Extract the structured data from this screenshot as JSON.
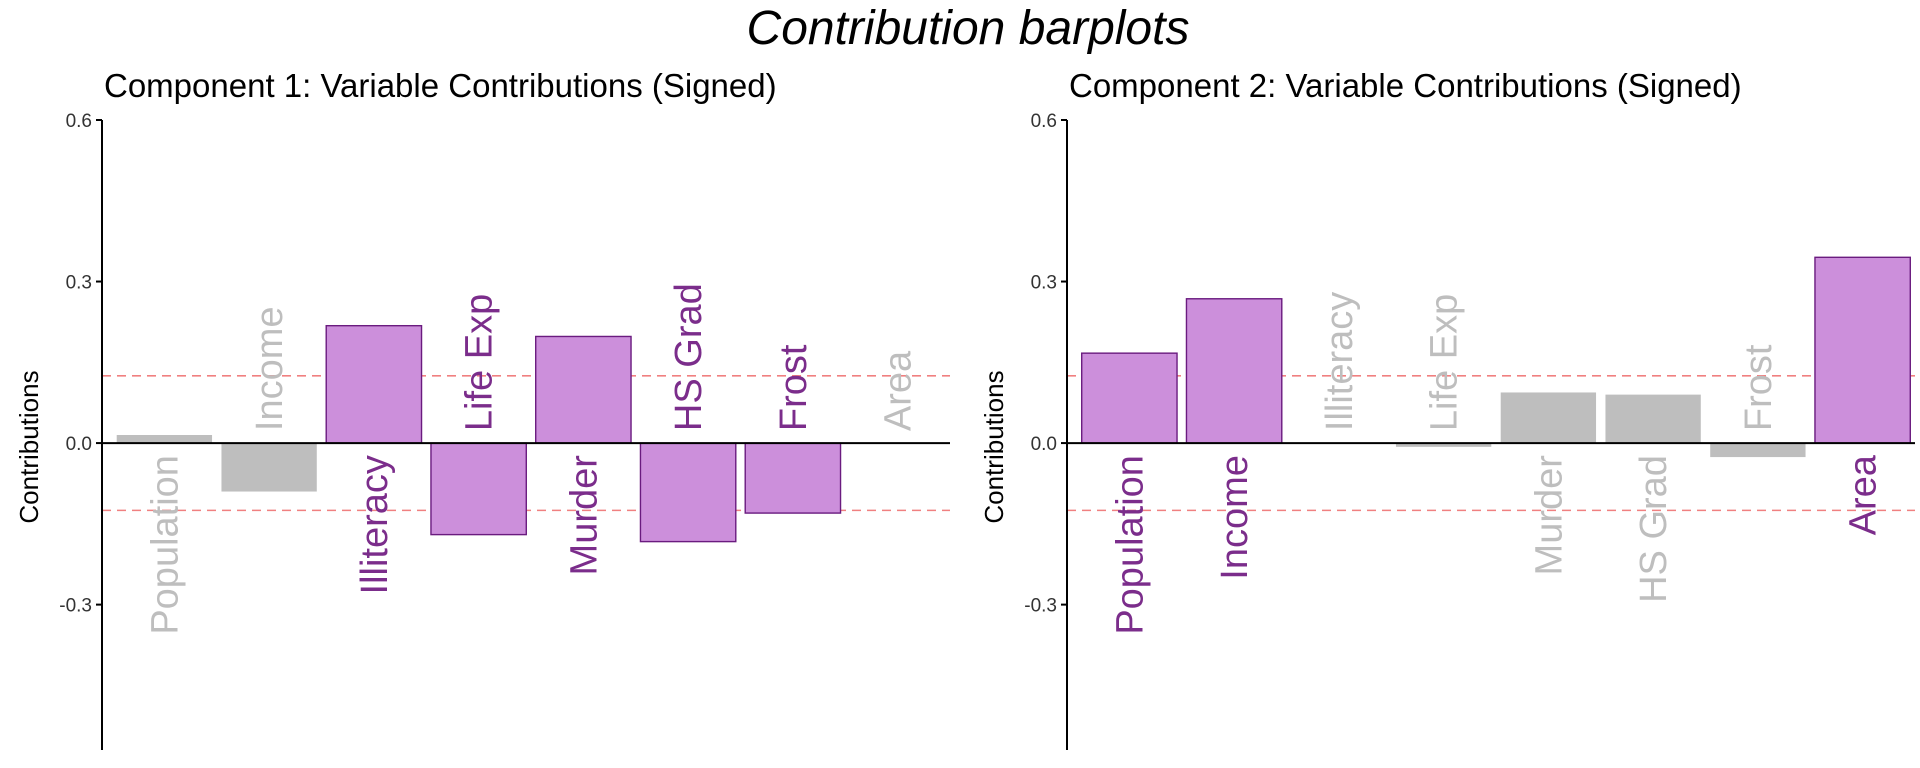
{
  "title": "Contribution barplots",
  "colors": {
    "significant_fill": "#cc8fdb",
    "significant_stroke": "#6a1b7f",
    "significant_text": "#7b2d8b",
    "nonsignificant_fill": "#bebebe",
    "nonsignificant_text": "#bebebe",
    "threshold_line": "#f08080"
  },
  "chart_data": [
    {
      "type": "bar",
      "title": "Component 1: Variable Contributions (Signed)",
      "ylabel": "Contributions",
      "ylim": [
        -0.57,
        0.6
      ],
      "yticks": [
        0.6,
        0.3,
        0.0,
        -0.3
      ],
      "ytick_labels": [
        "0.6",
        "0.3",
        "0.0",
        "-0.3"
      ],
      "threshold": 0.125,
      "categories": [
        "Population",
        "Income",
        "Illiteracy",
        "Life Exp",
        "Murder",
        "HS Grad",
        "Frost",
        "Area"
      ],
      "values": [
        0.015,
        -0.09,
        0.218,
        -0.17,
        0.198,
        -0.183,
        -0.13,
        0.0
      ],
      "significant": [
        false,
        false,
        true,
        true,
        true,
        true,
        true,
        false
      ]
    },
    {
      "type": "bar",
      "title": "Component 2: Variable Contributions (Signed)",
      "ylabel": "Contributions",
      "ylim": [
        -0.57,
        0.6
      ],
      "yticks": [
        0.6,
        0.3,
        0.0,
        -0.3
      ],
      "ytick_labels": [
        "0.6",
        "0.3",
        "0.0",
        "-0.3"
      ],
      "threshold": 0.125,
      "categories": [
        "Population",
        "Income",
        "Illiteracy",
        "Life Exp",
        "Murder",
        "HS Grad",
        "Frost",
        "Area"
      ],
      "values": [
        0.167,
        0.268,
        0.0,
        -0.007,
        0.094,
        0.09,
        -0.026,
        0.345
      ],
      "significant": [
        true,
        true,
        false,
        false,
        false,
        false,
        false,
        true
      ]
    }
  ]
}
